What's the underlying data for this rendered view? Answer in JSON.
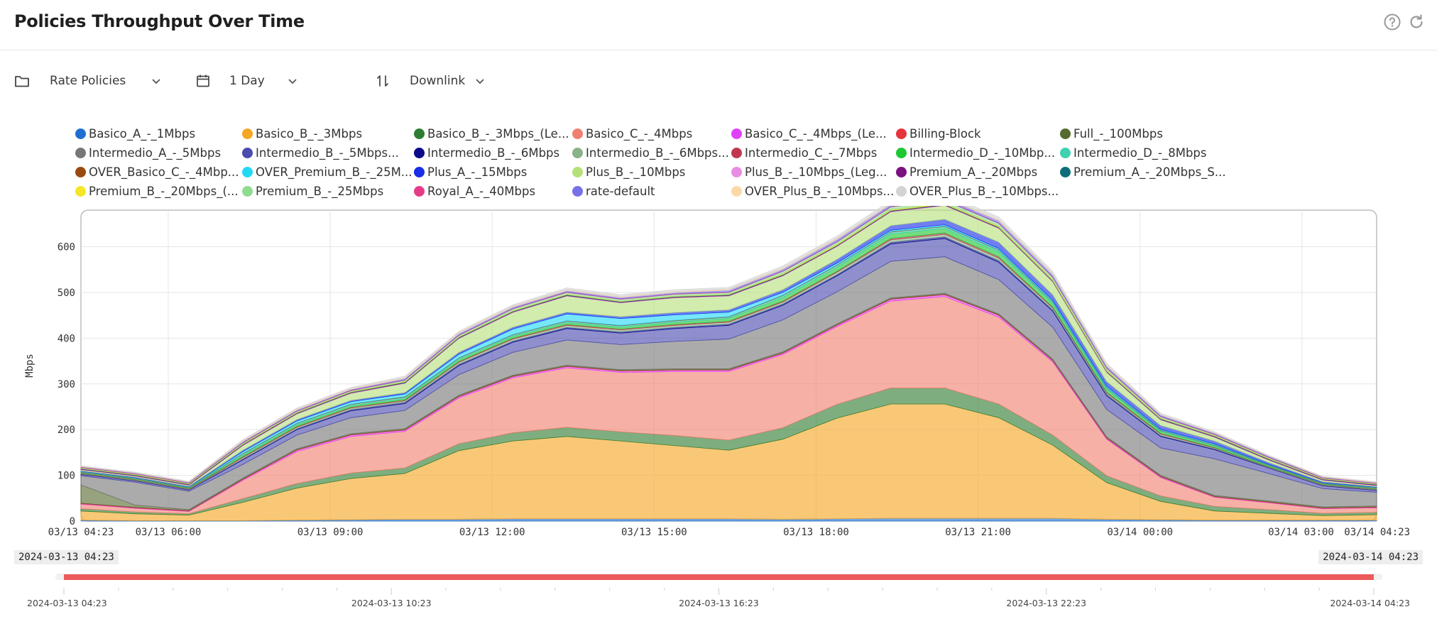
{
  "header": {
    "title": "Policies Throughput Over Time",
    "help_icon": "help-circle-icon",
    "refresh_icon": "refresh-icon"
  },
  "toolbar": {
    "policy_type": "Rate Policies",
    "period": "1 Day",
    "direction": "Downlink"
  },
  "range": {
    "start": "2024-03-13 04:23",
    "end": "2024-03-14 04:23"
  },
  "chart_data": {
    "type": "area",
    "stacked": true,
    "ylabel": "Mbps",
    "xlabel": "",
    "ylim": [
      0,
      680
    ],
    "yticks": [
      0,
      100,
      200,
      300,
      400,
      500,
      600
    ],
    "x_start_hours": 0,
    "x_end_hours": 24,
    "xtick_labels": [
      {
        "label": "03/13 04:23",
        "hours": 0
      },
      {
        "label": "03/13 06:00",
        "hours": 1.617
      },
      {
        "label": "03/13 09:00",
        "hours": 4.617
      },
      {
        "label": "03/13 12:00",
        "hours": 7.617
      },
      {
        "label": "03/13 15:00",
        "hours": 10.617
      },
      {
        "label": "03/13 18:00",
        "hours": 13.617
      },
      {
        "label": "03/13 21:00",
        "hours": 16.617
      },
      {
        "label": "03/14 00:00",
        "hours": 19.617
      },
      {
        "label": "03/14 03:00",
        "hours": 22.617
      },
      {
        "label": "03/14 04:23",
        "hours": 24
      }
    ],
    "x_hours": [
      0,
      1,
      2,
      3,
      4,
      5,
      6,
      7,
      8,
      9,
      10,
      11,
      12,
      13,
      14,
      15,
      16,
      17,
      18,
      19,
      20,
      21,
      22,
      23,
      24
    ],
    "series": [
      {
        "name": "Basico_A_-_1Mbps",
        "color": "#1f6fd1",
        "values": [
          2,
          1,
          1,
          1,
          2,
          3,
          4,
          4,
          5,
          5,
          5,
          5,
          5,
          4,
          5,
          6,
          6,
          6,
          6,
          4,
          3,
          2,
          2,
          2,
          2
        ]
      },
      {
        "name": "Basico_B_-_3Mbps",
        "color": "#f5a623",
        "values": [
          20,
          15,
          12,
          40,
          70,
          90,
          100,
          150,
          170,
          180,
          170,
          160,
          150,
          175,
          220,
          250,
          250,
          220,
          160,
          80,
          40,
          20,
          15,
          10,
          12
        ]
      },
      {
        "name": "Basico_B_-_3Mbps_(Le...",
        "color": "#2e7d32",
        "values": [
          5,
          4,
          3,
          8,
          10,
          12,
          12,
          15,
          18,
          20,
          20,
          22,
          22,
          25,
          30,
          35,
          35,
          30,
          22,
          15,
          12,
          10,
          8,
          5,
          5
        ]
      },
      {
        "name": "Basico_C_-_4Mbps",
        "color": "#f08070",
        "values": [
          10,
          8,
          5,
          40,
          70,
          80,
          80,
          100,
          120,
          130,
          130,
          140,
          150,
          160,
          170,
          190,
          200,
          190,
          160,
          80,
          40,
          20,
          15,
          10,
          10
        ]
      },
      {
        "name": "Basico_C_-_4Mbps_(Le...",
        "color": "#e040fb",
        "values": [
          1,
          1,
          1,
          2,
          3,
          3,
          3,
          3,
          3,
          3,
          3,
          3,
          3,
          3,
          3,
          4,
          4,
          4,
          3,
          2,
          2,
          1,
          1,
          1,
          1
        ]
      },
      {
        "name": "Billing-Block",
        "color": "#e5343b",
        "values": [
          1,
          1,
          1,
          1,
          1,
          1,
          1,
          1,
          1,
          1,
          1,
          1,
          1,
          1,
          1,
          1,
          1,
          1,
          1,
          1,
          1,
          1,
          1,
          1,
          1
        ]
      },
      {
        "name": "Full_-_100Mbps",
        "color": "#556b2f",
        "values": [
          40,
          5,
          2,
          2,
          2,
          2,
          2,
          2,
          2,
          2,
          2,
          2,
          2,
          2,
          2,
          2,
          2,
          2,
          2,
          2,
          2,
          2,
          2,
          2,
          2
        ]
      },
      {
        "name": "Intermedio_A_-_5Mbps",
        "color": "#777777",
        "values": [
          20,
          50,
          40,
          30,
          30,
          35,
          40,
          45,
          50,
          55,
          55,
          60,
          65,
          70,
          70,
          80,
          80,
          75,
          70,
          60,
          60,
          80,
          60,
          40,
          30
        ]
      },
      {
        "name": "Intermedio_B_-_5Mbps...",
        "color": "#4b4bb0",
        "values": [
          3,
          3,
          3,
          10,
          12,
          15,
          15,
          20,
          22,
          25,
          25,
          28,
          30,
          32,
          35,
          38,
          40,
          38,
          35,
          30,
          25,
          20,
          12,
          6,
          4
        ]
      },
      {
        "name": "Intermedio_B_-_6Mbps",
        "color": "#0a0a8a",
        "values": [
          1,
          1,
          1,
          2,
          2,
          3,
          3,
          3,
          3,
          3,
          3,
          3,
          3,
          3,
          3,
          4,
          4,
          4,
          3,
          3,
          2,
          2,
          1,
          1,
          1
        ]
      },
      {
        "name": "Intermedio_B_-_6Mbps...",
        "color": "#88b388",
        "values": [
          1,
          1,
          1,
          3,
          3,
          3,
          3,
          4,
          4,
          4,
          4,
          4,
          4,
          4,
          5,
          5,
          5,
          5,
          4,
          3,
          3,
          2,
          1,
          1,
          1
        ]
      },
      {
        "name": "Intermedio_C_-_7Mbps",
        "color": "#c0384f",
        "values": [
          1,
          1,
          1,
          2,
          2,
          2,
          2,
          2,
          2,
          2,
          2,
          2,
          2,
          2,
          2,
          3,
          3,
          3,
          2,
          2,
          2,
          1,
          1,
          1,
          1
        ]
      },
      {
        "name": "Intermedio_D_-_10Mbp...",
        "color": "#1ec832",
        "values": [
          1,
          1,
          1,
          3,
          3,
          3,
          3,
          4,
          4,
          4,
          4,
          5,
          6,
          8,
          9,
          10,
          10,
          10,
          8,
          6,
          4,
          3,
          2,
          1,
          1
        ]
      },
      {
        "name": "Intermedio_D_-_8Mbps",
        "color": "#3fd1b0",
        "values": [
          1,
          1,
          1,
          3,
          3,
          3,
          3,
          3,
          3,
          3,
          3,
          3,
          3,
          4,
          4,
          4,
          4,
          4,
          3,
          3,
          2,
          2,
          1,
          1,
          1
        ]
      },
      {
        "name": "OVER_Basico_C_-_4Mbp...",
        "color": "#9a4a10",
        "values": [
          1,
          1,
          1,
          1,
          1,
          1,
          1,
          1,
          1,
          1,
          1,
          1,
          1,
          1,
          1,
          1,
          1,
          1,
          1,
          1,
          1,
          1,
          1,
          1,
          1
        ]
      },
      {
        "name": "OVER_Premium_B_-_25M...",
        "color": "#22d8f5",
        "values": [
          1,
          1,
          1,
          4,
          5,
          5,
          6,
          8,
          12,
          15,
          15,
          12,
          10,
          6,
          4,
          3,
          3,
          3,
          3,
          3,
          2,
          2,
          1,
          1,
          1
        ]
      },
      {
        "name": "Plus_A_-_15Mbps",
        "color": "#1a2ee8",
        "values": [
          1,
          1,
          1,
          3,
          3,
          3,
          3,
          4,
          4,
          4,
          4,
          5,
          5,
          6,
          8,
          10,
          12,
          14,
          12,
          10,
          8,
          6,
          4,
          2,
          1
        ]
      },
      {
        "name": "Plus_B_-_10Mbps",
        "color": "#b5e07a",
        "values": [
          2,
          2,
          2,
          10,
          12,
          15,
          20,
          30,
          32,
          35,
          30,
          32,
          30,
          30,
          28,
          30,
          30,
          30,
          28,
          20,
          12,
          8,
          5,
          3,
          2
        ]
      },
      {
        "name": "Plus_B_-_10Mbps_(Leg...",
        "color": "#e98ce3",
        "values": [
          1,
          1,
          1,
          1,
          1,
          1,
          1,
          1,
          1,
          1,
          1,
          1,
          1,
          1,
          1,
          1,
          1,
          1,
          1,
          1,
          1,
          1,
          1,
          1,
          1
        ]
      },
      {
        "name": "Premium_A_-_20Mbps",
        "color": "#7a1380",
        "values": [
          1,
          1,
          1,
          1,
          1,
          1,
          1,
          1,
          1,
          1,
          1,
          1,
          1,
          1,
          1,
          1,
          1,
          1,
          1,
          1,
          1,
          1,
          1,
          1,
          1
        ]
      },
      {
        "name": "Premium_A_-_20Mbps_S...",
        "color": "#0d6e7a",
        "values": [
          1,
          1,
          1,
          1,
          1,
          1,
          1,
          1,
          1,
          1,
          1,
          1,
          1,
          1,
          1,
          1,
          1,
          1,
          1,
          1,
          1,
          1,
          1,
          1,
          1
        ]
      },
      {
        "name": "Premium_B_-_20Mbps_(...",
        "color": "#f5e626",
        "values": [
          1,
          1,
          1,
          1,
          1,
          1,
          1,
          1,
          1,
          1,
          1,
          1,
          1,
          2,
          2,
          2,
          2,
          2,
          2,
          2,
          1,
          1,
          1,
          1,
          1
        ]
      },
      {
        "name": "Premium_B_-_25Mbps",
        "color": "#8fdc90",
        "values": [
          1,
          1,
          1,
          2,
          2,
          2,
          3,
          3,
          4,
          4,
          4,
          4,
          4,
          5,
          5,
          6,
          6,
          6,
          5,
          4,
          3,
          2,
          2,
          1,
          1
        ]
      },
      {
        "name": "Royal_A_-_40Mbps",
        "color": "#e63c88",
        "values": [
          1,
          1,
          1,
          1,
          1,
          1,
          1,
          1,
          1,
          1,
          1,
          1,
          1,
          1,
          1,
          1,
          1,
          1,
          1,
          1,
          1,
          1,
          1,
          1,
          1
        ]
      },
      {
        "name": "rate-default",
        "color": "#7870e8",
        "values": [
          1,
          1,
          1,
          2,
          2,
          2,
          3,
          3,
          3,
          3,
          3,
          3,
          4,
          4,
          5,
          5,
          5,
          5,
          5,
          4,
          3,
          2,
          2,
          1,
          1
        ]
      },
      {
        "name": "OVER_Plus_B_-_10Mbps...",
        "color": "#fbd8a8",
        "values": [
          1,
          1,
          1,
          2,
          2,
          2,
          2,
          2,
          2,
          2,
          2,
          2,
          2,
          2,
          2,
          2,
          2,
          2,
          2,
          2,
          1,
          1,
          1,
          1,
          1
        ]
      },
      {
        "name": "OVER_Plus_B_-_10Mbps...",
        "color": "#d3d3d3",
        "values": [
          1,
          1,
          1,
          2,
          2,
          2,
          3,
          3,
          3,
          4,
          4,
          4,
          4,
          5,
          5,
          6,
          6,
          6,
          5,
          4,
          3,
          2,
          1,
          1,
          1
        ]
      }
    ]
  },
  "brush": {
    "labels": [
      "2024-03-13 04:23",
      "2024-03-13 10:23",
      "2024-03-13 16:23",
      "2024-03-13 22:23",
      "2024-03-14 04:23"
    ],
    "selection_start_fraction": 0,
    "selection_end_fraction": 1,
    "color": "#ec5a5a"
  }
}
